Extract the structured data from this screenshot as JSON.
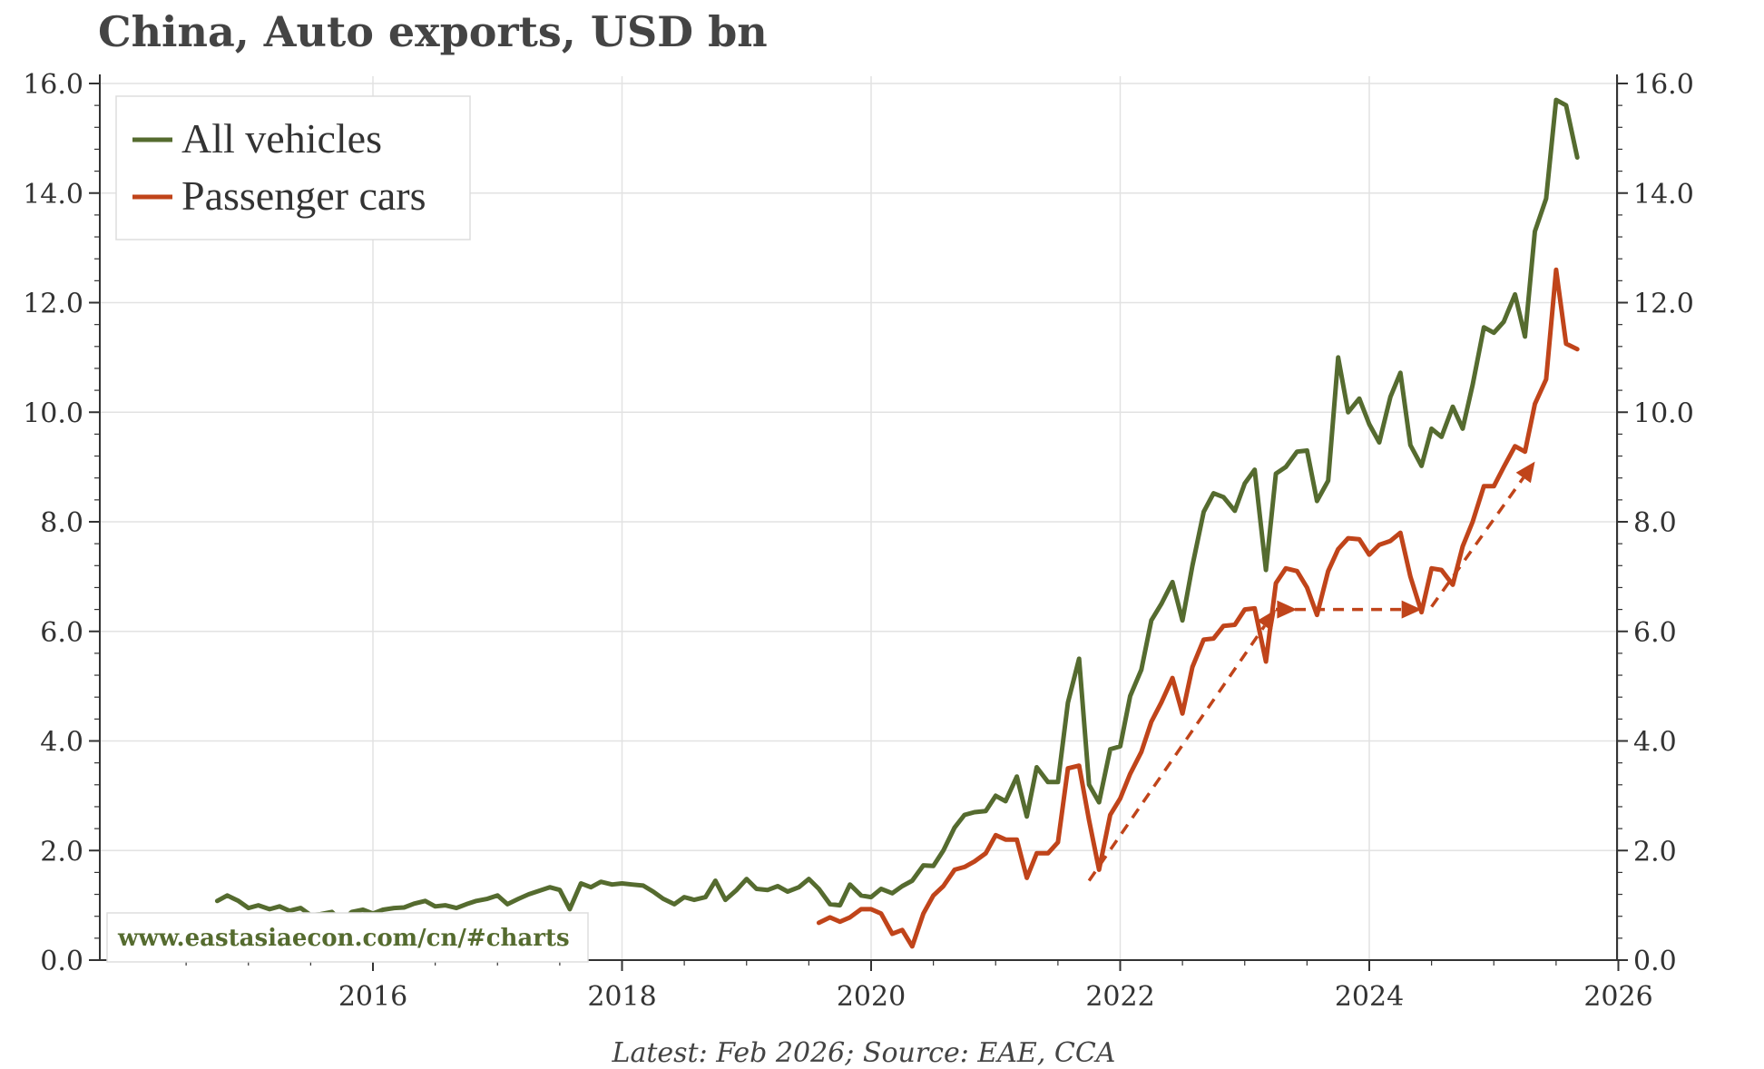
{
  "chart_data": {
    "type": "line",
    "title": "China, Auto exports, USD bn",
    "ylim": [
      0,
      16
    ],
    "y_ticks": [
      "0.0",
      "2.0",
      "4.0",
      "6.0",
      "8.0",
      "10.0",
      "12.0",
      "14.0",
      "16.0"
    ],
    "x_ticks": [
      "2016",
      "2018",
      "2020",
      "2022",
      "2024",
      "2026"
    ],
    "xlim": [
      2014.2,
      2026.0
    ],
    "grid": true,
    "legend_position": "top-left",
    "watermark": "www.eastasiaecon.com/cn/#charts",
    "source_note": "Latest: Feb 2026; Source: EAE, CCA",
    "series": [
      {
        "name": "All vehicles",
        "color": "#556b2f",
        "points": [
          [
            2014.75,
            1.08
          ],
          [
            2014.83,
            1.18
          ],
          [
            2014.92,
            1.08
          ],
          [
            2015.0,
            0.95
          ],
          [
            2015.08,
            1.0
          ],
          [
            2015.17,
            0.93
          ],
          [
            2015.25,
            0.98
          ],
          [
            2015.33,
            0.9
          ],
          [
            2015.42,
            0.95
          ],
          [
            2015.5,
            0.82
          ],
          [
            2015.58,
            0.84
          ],
          [
            2015.67,
            0.88
          ],
          [
            2015.75,
            0.7
          ],
          [
            2015.83,
            0.88
          ],
          [
            2015.92,
            0.92
          ],
          [
            2016.0,
            0.85
          ],
          [
            2016.08,
            0.92
          ],
          [
            2016.17,
            0.95
          ],
          [
            2016.25,
            0.96
          ],
          [
            2016.33,
            1.03
          ],
          [
            2016.42,
            1.08
          ],
          [
            2016.5,
            0.98
          ],
          [
            2016.58,
            1.0
          ],
          [
            2016.67,
            0.95
          ],
          [
            2016.75,
            1.02
          ],
          [
            2016.83,
            1.08
          ],
          [
            2016.92,
            1.12
          ],
          [
            2017.0,
            1.18
          ],
          [
            2017.08,
            1.02
          ],
          [
            2017.17,
            1.12
          ],
          [
            2017.25,
            1.2
          ],
          [
            2017.33,
            1.26
          ],
          [
            2017.42,
            1.33
          ],
          [
            2017.5,
            1.28
          ],
          [
            2017.58,
            0.93
          ],
          [
            2017.67,
            1.4
          ],
          [
            2017.75,
            1.33
          ],
          [
            2017.83,
            1.43
          ],
          [
            2017.92,
            1.38
          ],
          [
            2018.0,
            1.4
          ],
          [
            2018.08,
            1.38
          ],
          [
            2018.17,
            1.36
          ],
          [
            2018.25,
            1.25
          ],
          [
            2018.33,
            1.12
          ],
          [
            2018.42,
            1.02
          ],
          [
            2018.5,
            1.15
          ],
          [
            2018.58,
            1.1
          ],
          [
            2018.67,
            1.15
          ],
          [
            2018.75,
            1.45
          ],
          [
            2018.83,
            1.1
          ],
          [
            2018.92,
            1.28
          ],
          [
            2019.0,
            1.48
          ],
          [
            2019.08,
            1.3
          ],
          [
            2019.17,
            1.28
          ],
          [
            2019.25,
            1.35
          ],
          [
            2019.33,
            1.25
          ],
          [
            2019.42,
            1.33
          ],
          [
            2019.5,
            1.48
          ],
          [
            2019.58,
            1.3
          ],
          [
            2019.67,
            1.02
          ],
          [
            2019.75,
            1.0
          ],
          [
            2019.83,
            1.38
          ],
          [
            2019.92,
            1.18
          ],
          [
            2020.0,
            1.15
          ],
          [
            2020.08,
            1.3
          ],
          [
            2020.17,
            1.22
          ],
          [
            2020.25,
            1.35
          ],
          [
            2020.33,
            1.45
          ],
          [
            2020.42,
            1.73
          ],
          [
            2020.5,
            1.72
          ],
          [
            2020.58,
            2.0
          ],
          [
            2020.67,
            2.42
          ],
          [
            2020.75,
            2.65
          ],
          [
            2020.83,
            2.7
          ],
          [
            2020.92,
            2.72
          ],
          [
            2021.0,
            3.0
          ],
          [
            2021.08,
            2.9
          ],
          [
            2021.17,
            3.35
          ],
          [
            2021.25,
            2.62
          ],
          [
            2021.33,
            3.52
          ],
          [
            2021.42,
            3.25
          ],
          [
            2021.5,
            3.25
          ],
          [
            2021.58,
            4.7
          ],
          [
            2021.67,
            5.5
          ],
          [
            2021.75,
            3.2
          ],
          [
            2021.83,
            2.88
          ],
          [
            2021.92,
            3.85
          ],
          [
            2022.0,
            3.9
          ],
          [
            2022.08,
            4.82
          ],
          [
            2022.17,
            5.3
          ],
          [
            2022.25,
            6.2
          ],
          [
            2022.33,
            6.5
          ],
          [
            2022.42,
            6.9
          ],
          [
            2022.5,
            6.2
          ],
          [
            2022.58,
            7.2
          ],
          [
            2022.67,
            8.18
          ],
          [
            2022.75,
            8.52
          ],
          [
            2022.83,
            8.45
          ],
          [
            2022.92,
            8.2
          ],
          [
            2023.0,
            8.7
          ],
          [
            2023.08,
            8.95
          ],
          [
            2023.17,
            7.12
          ],
          [
            2023.25,
            8.88
          ],
          [
            2023.33,
            9.0
          ],
          [
            2023.42,
            9.28
          ],
          [
            2023.5,
            9.3
          ],
          [
            2023.58,
            8.38
          ],
          [
            2023.67,
            8.75
          ],
          [
            2023.75,
            11.0
          ],
          [
            2023.83,
            10.0
          ],
          [
            2023.92,
            10.25
          ],
          [
            2024.0,
            9.78
          ],
          [
            2024.08,
            9.45
          ],
          [
            2024.17,
            10.28
          ],
          [
            2024.25,
            10.72
          ],
          [
            2024.33,
            9.4
          ],
          [
            2024.42,
            9.02
          ],
          [
            2024.5,
            9.7
          ],
          [
            2024.58,
            9.55
          ],
          [
            2024.67,
            10.1
          ],
          [
            2024.75,
            9.7
          ],
          [
            2024.83,
            10.5
          ],
          [
            2024.92,
            11.55
          ],
          [
            2025.0,
            11.45
          ],
          [
            2025.08,
            11.65
          ],
          [
            2025.17,
            12.15
          ],
          [
            2025.25,
            11.38
          ],
          [
            2025.33,
            13.3
          ],
          [
            2025.42,
            13.9
          ],
          [
            2025.5,
            15.7
          ],
          [
            2025.58,
            15.6
          ],
          [
            2025.67,
            14.65
          ]
        ]
      },
      {
        "name": "Passenger cars",
        "color": "#c0441a",
        "points": [
          [
            2019.58,
            0.68
          ],
          [
            2019.67,
            0.78
          ],
          [
            2019.75,
            0.7
          ],
          [
            2019.83,
            0.78
          ],
          [
            2019.92,
            0.93
          ],
          [
            2020.0,
            0.93
          ],
          [
            2020.08,
            0.85
          ],
          [
            2020.17,
            0.48
          ],
          [
            2020.25,
            0.55
          ],
          [
            2020.33,
            0.25
          ],
          [
            2020.42,
            0.85
          ],
          [
            2020.5,
            1.18
          ],
          [
            2020.58,
            1.35
          ],
          [
            2020.67,
            1.65
          ],
          [
            2020.75,
            1.7
          ],
          [
            2020.83,
            1.8
          ],
          [
            2020.92,
            1.95
          ],
          [
            2021.0,
            2.28
          ],
          [
            2021.08,
            2.2
          ],
          [
            2021.17,
            2.2
          ],
          [
            2021.25,
            1.5
          ],
          [
            2021.33,
            1.95
          ],
          [
            2021.42,
            1.95
          ],
          [
            2021.5,
            2.15
          ],
          [
            2021.58,
            3.5
          ],
          [
            2021.67,
            3.55
          ],
          [
            2021.75,
            2.55
          ],
          [
            2021.83,
            1.65
          ],
          [
            2021.92,
            2.65
          ],
          [
            2022.0,
            2.95
          ],
          [
            2022.08,
            3.4
          ],
          [
            2022.17,
            3.8
          ],
          [
            2022.25,
            4.35
          ],
          [
            2022.33,
            4.7
          ],
          [
            2022.42,
            5.15
          ],
          [
            2022.5,
            4.5
          ],
          [
            2022.58,
            5.35
          ],
          [
            2022.67,
            5.85
          ],
          [
            2022.75,
            5.87
          ],
          [
            2022.83,
            6.1
          ],
          [
            2022.92,
            6.12
          ],
          [
            2023.0,
            6.4
          ],
          [
            2023.08,
            6.42
          ],
          [
            2023.17,
            5.45
          ],
          [
            2023.25,
            6.88
          ],
          [
            2023.33,
            7.15
          ],
          [
            2023.42,
            7.1
          ],
          [
            2023.5,
            6.8
          ],
          [
            2023.58,
            6.3
          ],
          [
            2023.67,
            7.1
          ],
          [
            2023.75,
            7.5
          ],
          [
            2023.83,
            7.7
          ],
          [
            2023.92,
            7.68
          ],
          [
            2024.0,
            7.4
          ],
          [
            2024.08,
            7.58
          ],
          [
            2024.17,
            7.65
          ],
          [
            2024.25,
            7.8
          ],
          [
            2024.33,
            7.0
          ],
          [
            2024.42,
            6.35
          ],
          [
            2024.5,
            7.15
          ],
          [
            2024.58,
            7.12
          ],
          [
            2024.67,
            6.85
          ],
          [
            2024.75,
            7.55
          ],
          [
            2024.83,
            8.0
          ],
          [
            2024.92,
            8.65
          ],
          [
            2025.0,
            8.65
          ],
          [
            2025.08,
            9.0
          ],
          [
            2025.17,
            9.38
          ],
          [
            2025.25,
            9.28
          ],
          [
            2025.33,
            10.15
          ],
          [
            2025.42,
            10.6
          ],
          [
            2025.5,
            12.6
          ],
          [
            2025.58,
            11.25
          ],
          [
            2025.67,
            11.15
          ]
        ]
      }
    ],
    "annotations": [
      {
        "type": "dashed-arrow",
        "from": [
          2021.75,
          1.45
        ],
        "to": [
          2023.25,
          6.4
        ]
      },
      {
        "type": "dashed-arrow",
        "from": [
          2023.25,
          6.4
        ],
        "to": [
          2024.42,
          6.4
        ]
      },
      {
        "type": "dashed-arrow",
        "from": [
          2023.25,
          6.4
        ],
        "to": [
          2023.42,
          6.4
        ]
      },
      {
        "type": "dashed-arrow",
        "from": [
          2024.5,
          6.45
        ],
        "to": [
          2025.33,
          9.1
        ]
      }
    ]
  }
}
